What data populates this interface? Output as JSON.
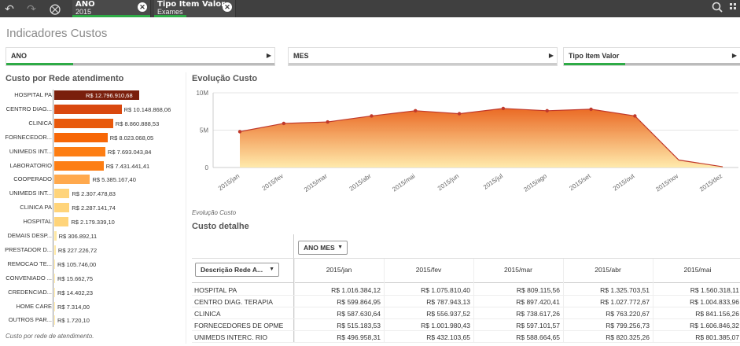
{
  "toolbar": {
    "back_icon": "smart-search-back-icon",
    "forward_icon": "forward-icon",
    "clear_icon": "clear-selections-icon",
    "selections": [
      {
        "field": "ANO",
        "value": "2015"
      },
      {
        "field": "Tipo Item Valor",
        "value": "Exames"
      }
    ],
    "search_icon": "search-icon",
    "menu_icon": "grid-menu-icon"
  },
  "sheet_title": "Indicadores Custos",
  "filters": [
    {
      "label": "ANO"
    },
    {
      "label": "MES"
    },
    {
      "label": "Tipo Item Valor"
    }
  ],
  "rede_panel": {
    "title": "Custo por Rede atendimento",
    "footnote": "Custo por rede de atendimento.",
    "items": [
      {
        "label": "HOSPITAL PA",
        "value": 12796910.68,
        "text": "R$ 12.796.910,68",
        "color": "#7a1f0c"
      },
      {
        "label": "CENTRO DIAG...",
        "value": 10148868.06,
        "text": "R$ 10.148.868,06",
        "color": "#d9480f"
      },
      {
        "label": "CLINICA",
        "value": 8860888.53,
        "text": "R$ 8.860.888,53",
        "color": "#e8590c"
      },
      {
        "label": "FORNECEDOR...",
        "value": 8023068.05,
        "text": "R$ 8.023.068,05",
        "color": "#f76707"
      },
      {
        "label": "UNIMEDS INT...",
        "value": 7693043.84,
        "text": "R$ 7.693.043,84",
        "color": "#fd7e14"
      },
      {
        "label": "LABORATORIO",
        "value": 7431441.41,
        "text": "R$ 7.431.441,41",
        "color": "#fd7e14"
      },
      {
        "label": "COOPERADO",
        "value": 5385167.4,
        "text": "R$ 5.385.167,40",
        "color": "#ffa94d"
      },
      {
        "label": "UNIMEDS INT...",
        "value": 2307478.83,
        "text": "R$ 2.307.478,83",
        "color": "#ffd47a"
      },
      {
        "label": "CLINICA PA",
        "value": 2287141.74,
        "text": "R$ 2.287.141,74",
        "color": "#ffd47a"
      },
      {
        "label": "HOSPITAL",
        "value": 2179339.1,
        "text": "R$ 2.179.339,10",
        "color": "#ffd47a"
      },
      {
        "label": "DEMAIS DESP...",
        "value": 306892.11,
        "text": "R$ 306.892,11",
        "color": "#ffe8a3"
      },
      {
        "label": "PRESTADOR D...",
        "value": 227226.72,
        "text": "R$ 227.226,72",
        "color": "#ffe8a3"
      },
      {
        "label": "REMOCAO TE...",
        "value": 105746.0,
        "text": "R$ 105.746,00",
        "color": "#ffe8a3"
      },
      {
        "label": "CONVENIADO ...",
        "value": 15662.75,
        "text": "R$ 15.662,75",
        "color": "#ffe8a3"
      },
      {
        "label": "CREDENCIAD...",
        "value": 14402.23,
        "text": "R$ 14.402,23",
        "color": "#ffe8a3"
      },
      {
        "label": "HOME CARE",
        "value": 7314.0,
        "text": "R$ 7.314,00",
        "color": "#ffe8a3"
      },
      {
        "label": "OUTROS PAR...",
        "value": 1720.1,
        "text": "R$ 1.720,10",
        "color": "#ffe8a3"
      }
    ]
  },
  "evolucao": {
    "title": "Evolução Custo",
    "footnote": "Evolução Custo"
  },
  "chart_data": {
    "type": "area",
    "title": "Evolução Custo",
    "categories": [
      "2015/jan",
      "2015/fev",
      "2015/mar",
      "2015/abr",
      "2015/mai",
      "2015/jun",
      "2015/jul",
      "2015/ago",
      "2015/set",
      "2015/out",
      "2015/nov",
      "2015/dez"
    ],
    "values": [
      4.8,
      5.9,
      6.1,
      6.9,
      7.6,
      7.2,
      7.9,
      7.6,
      7.8,
      6.9,
      1.0,
      0.1
    ],
    "value_unit": "millions",
    "yticks": [
      "0",
      "5M",
      "10M"
    ],
    "ylim": [
      0,
      10
    ],
    "colors": {
      "top": "#e8590c",
      "bottom": "#ffe8a3",
      "line": "#c0392b"
    }
  },
  "detalhe": {
    "title": "Custo detalhe",
    "col_dim": "ANO MES",
    "row_dim": "Descrição Rede A...",
    "columns": [
      "2015/jan",
      "2015/fev",
      "2015/mar",
      "2015/abr",
      "2015/mai"
    ],
    "rows": [
      {
        "label": "HOSPITAL PA",
        "values": [
          "R$ 1.016.384,12",
          "R$ 1.075.810,40",
          "R$ 809.115,56",
          "R$ 1.325.703,51",
          "R$ 1.560.318,11"
        ]
      },
      {
        "label": "CENTRO DIAG. TERAPIA",
        "values": [
          "R$ 599.864,95",
          "R$ 787.943,13",
          "R$ 897.420,41",
          "R$ 1.027.772,67",
          "R$ 1.004.833,96"
        ]
      },
      {
        "label": "CLINICA",
        "values": [
          "R$ 587.630,64",
          "R$ 556.937,52",
          "R$ 738.617,26",
          "R$ 763.220,67",
          "R$ 841.156,26"
        ]
      },
      {
        "label": "FORNECEDORES DE OPME",
        "values": [
          "R$ 515.183,53",
          "R$ 1.001.980,43",
          "R$ 597.101,57",
          "R$ 799.256,73",
          "R$ 1.606.846,32"
        ]
      },
      {
        "label": "UNIMEDS INTERC. RIO",
        "values": [
          "R$ 496.958,31",
          "R$ 432.103,65",
          "R$ 588.664,65",
          "R$ 820.325,26",
          "R$ 801.385,07"
        ]
      }
    ]
  }
}
